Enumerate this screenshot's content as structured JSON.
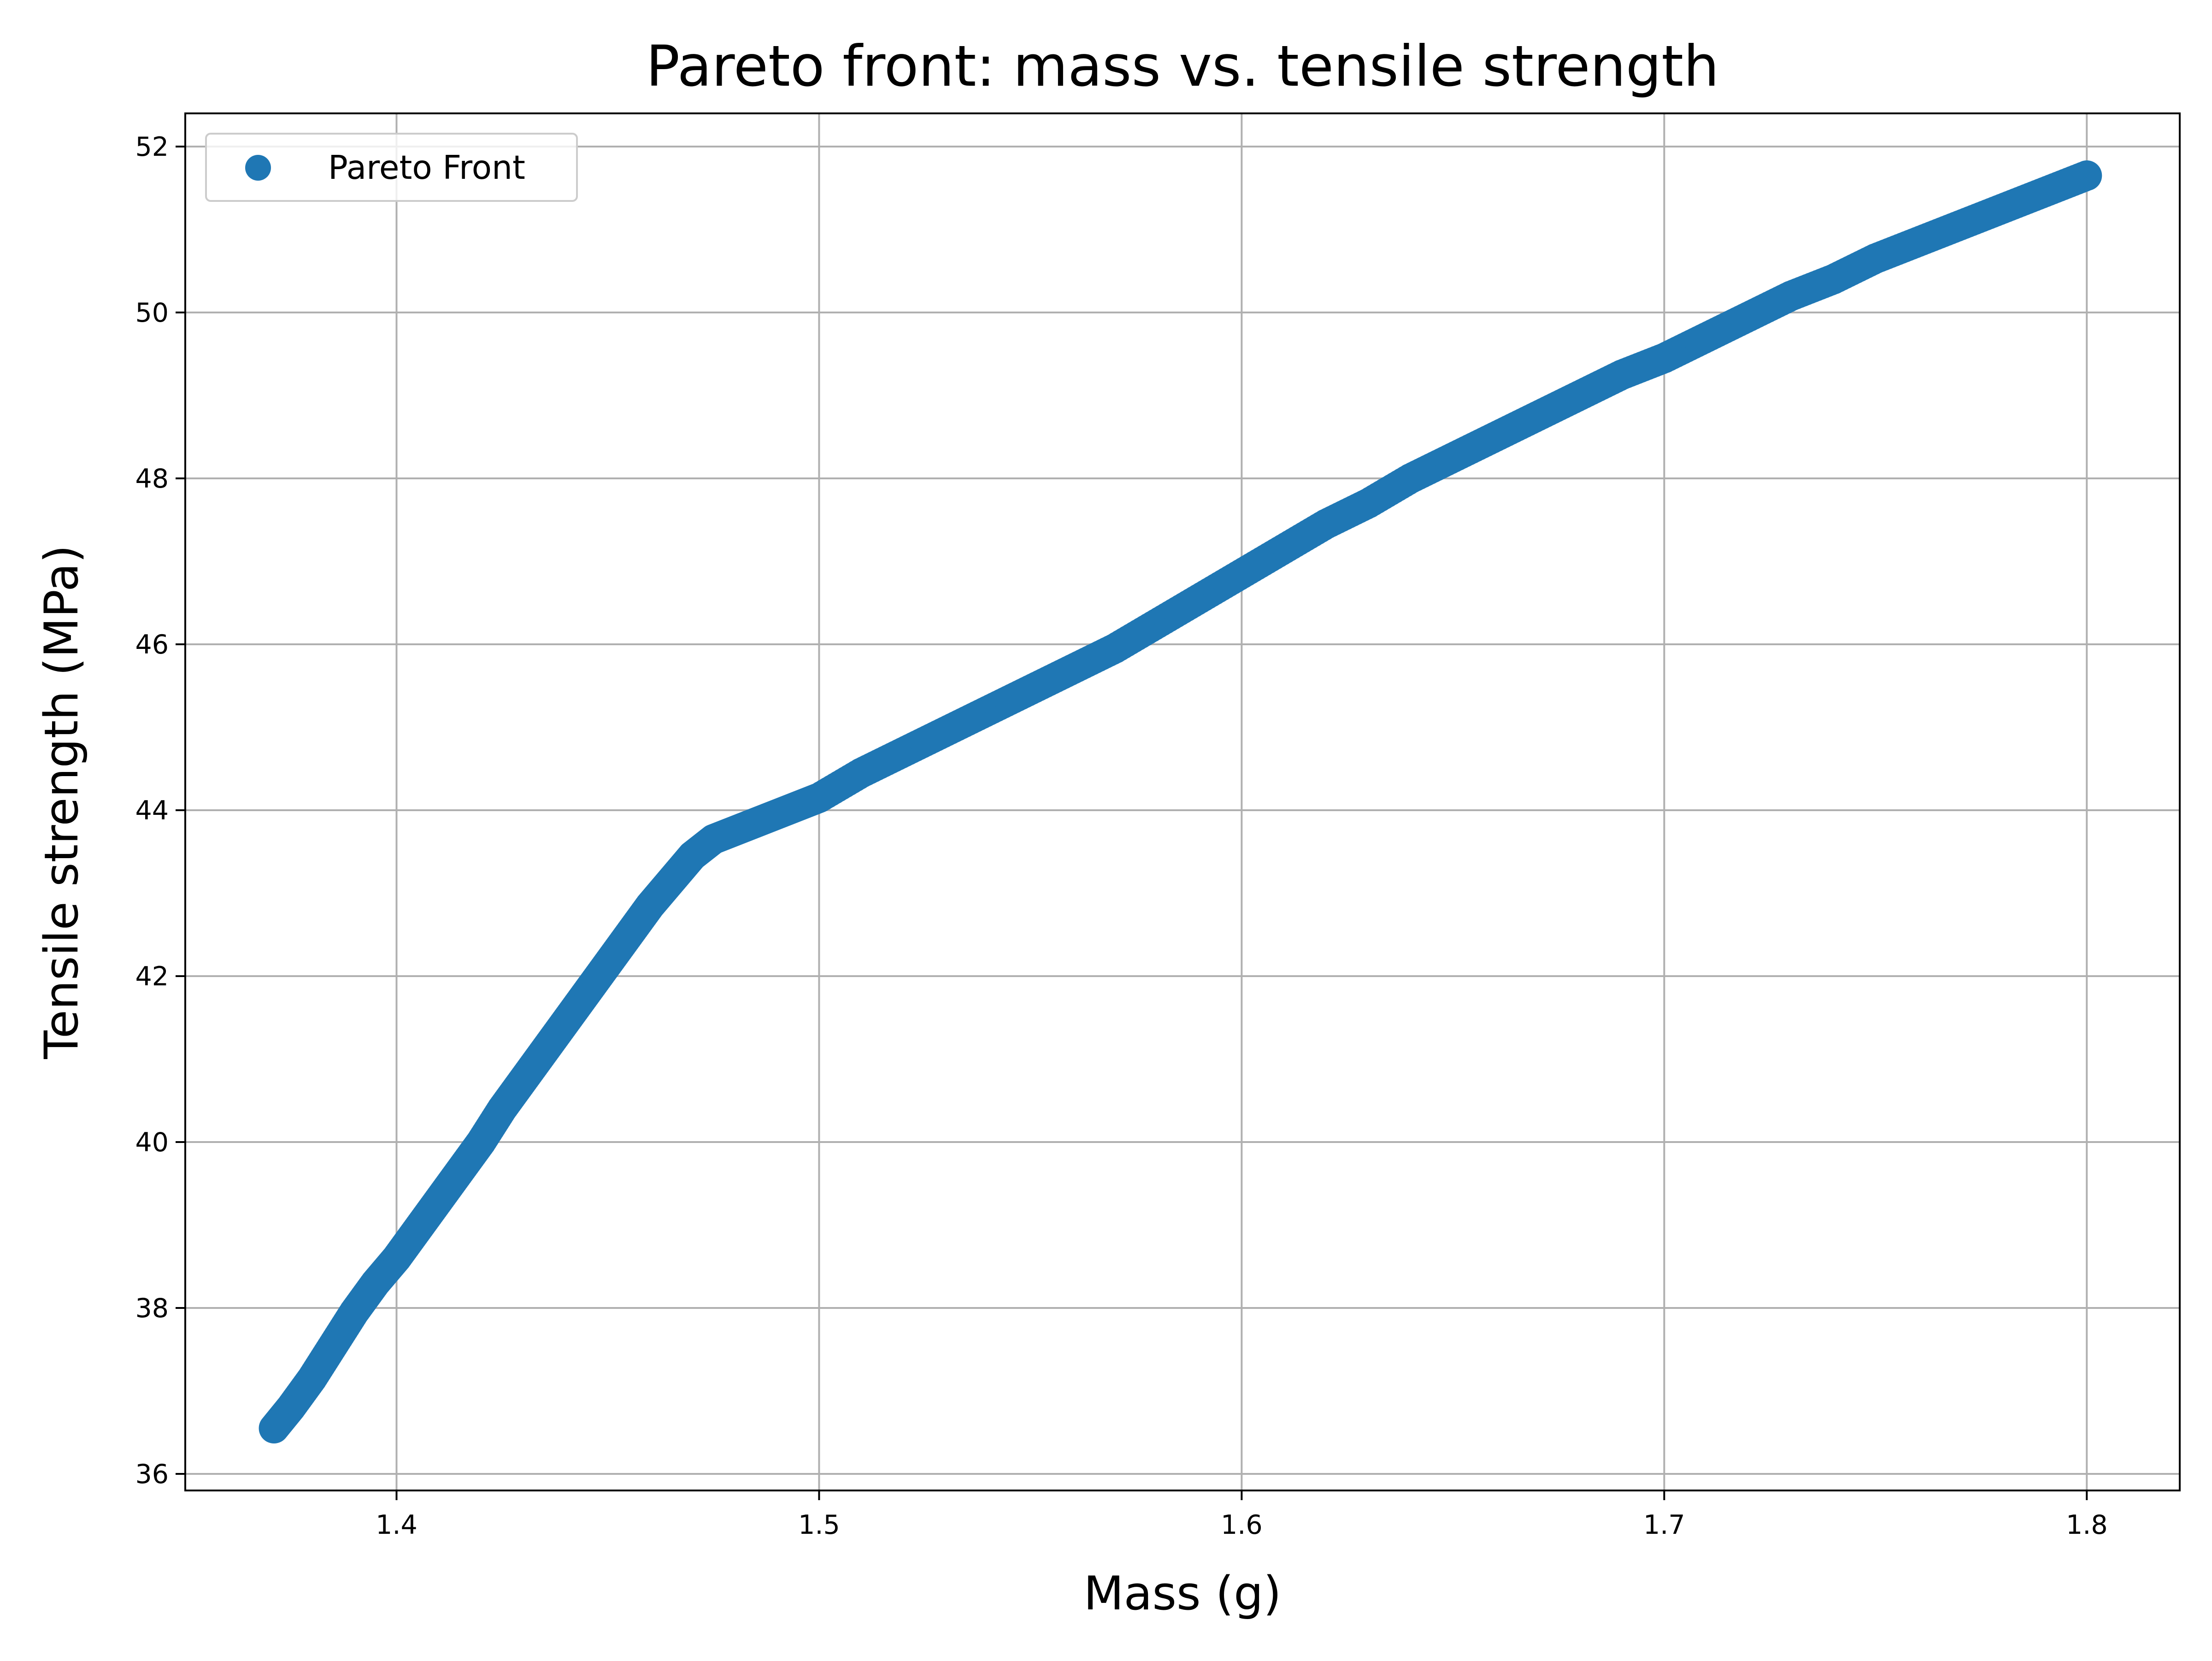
{
  "chart_data": {
    "type": "scatter",
    "title": "Pareto front: mass vs. tensile strength",
    "xlabel": "Mass (g)",
    "ylabel": "Tensile strength (MPa)",
    "xlim": [
      1.35,
      1.822
    ],
    "ylim": [
      35.8,
      52.4
    ],
    "xticks": [
      1.4,
      1.5,
      1.6,
      1.7,
      1.8
    ],
    "yticks": [
      36,
      38,
      40,
      42,
      44,
      46,
      48,
      50,
      52
    ],
    "grid": true,
    "legend_position": "upper-left",
    "series": [
      {
        "name": "Pareto Front",
        "color": "#1f77b4",
        "x": [
          1.371,
          1.375,
          1.38,
          1.385,
          1.39,
          1.395,
          1.4,
          1.405,
          1.41,
          1.415,
          1.42,
          1.425,
          1.43,
          1.435,
          1.44,
          1.445,
          1.45,
          1.455,
          1.46,
          1.465,
          1.47,
          1.475,
          1.48,
          1.485,
          1.49,
          1.495,
          1.5,
          1.51,
          1.52,
          1.53,
          1.54,
          1.55,
          1.56,
          1.57,
          1.58,
          1.59,
          1.6,
          1.61,
          1.62,
          1.63,
          1.64,
          1.65,
          1.66,
          1.67,
          1.68,
          1.69,
          1.7,
          1.71,
          1.72,
          1.73,
          1.74,
          1.75,
          1.76,
          1.77,
          1.78,
          1.79,
          1.8
        ],
        "y": [
          36.55,
          36.8,
          37.15,
          37.55,
          37.95,
          38.3,
          38.6,
          38.95,
          39.3,
          39.65,
          40.0,
          40.4,
          40.75,
          41.1,
          41.45,
          41.8,
          42.15,
          42.5,
          42.85,
          43.15,
          43.45,
          43.65,
          43.75,
          43.85,
          43.95,
          44.05,
          44.15,
          44.45,
          44.7,
          44.95,
          45.2,
          45.45,
          45.7,
          45.95,
          46.25,
          46.55,
          46.85,
          47.15,
          47.45,
          47.7,
          48.0,
          48.25,
          48.5,
          48.75,
          49.0,
          49.25,
          49.45,
          49.7,
          49.95,
          50.2,
          50.4,
          50.65,
          50.85,
          51.05,
          51.25,
          51.45,
          51.65
        ]
      }
    ]
  }
}
